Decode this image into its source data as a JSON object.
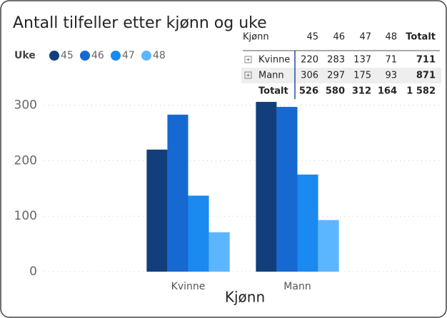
{
  "chart_data": {
    "type": "bar",
    "title": "Antall tilfeller etter kjønn og uke",
    "legend_title": "Uke",
    "xlabel": "Kjønn",
    "categories": [
      "Kvinne",
      "Mann"
    ],
    "series": [
      {
        "name": "45",
        "color": "#123f7c",
        "values": [
          220,
          306
        ]
      },
      {
        "name": "46",
        "color": "#1769d2",
        "values": [
          283,
          297
        ]
      },
      {
        "name": "47",
        "color": "#1a8af0",
        "values": [
          137,
          175
        ]
      },
      {
        "name": "48",
        "color": "#5cb6ff",
        "values": [
          71,
          93
        ]
      }
    ],
    "ylim": [
      0,
      320
    ],
    "yticks": [
      0,
      100,
      200,
      300
    ],
    "grid": true
  },
  "table": {
    "columns": [
      "Kjønn",
      "45",
      "46",
      "47",
      "48",
      "Totalt"
    ],
    "rows": [
      [
        "Kvinne",
        "220",
        "283",
        "137",
        "71",
        "711"
      ],
      [
        "Mann",
        "306",
        "297",
        "175",
        "93",
        "871"
      ]
    ],
    "total": [
      "Totalt",
      "526",
      "580",
      "312",
      "164",
      "1 582"
    ]
  }
}
